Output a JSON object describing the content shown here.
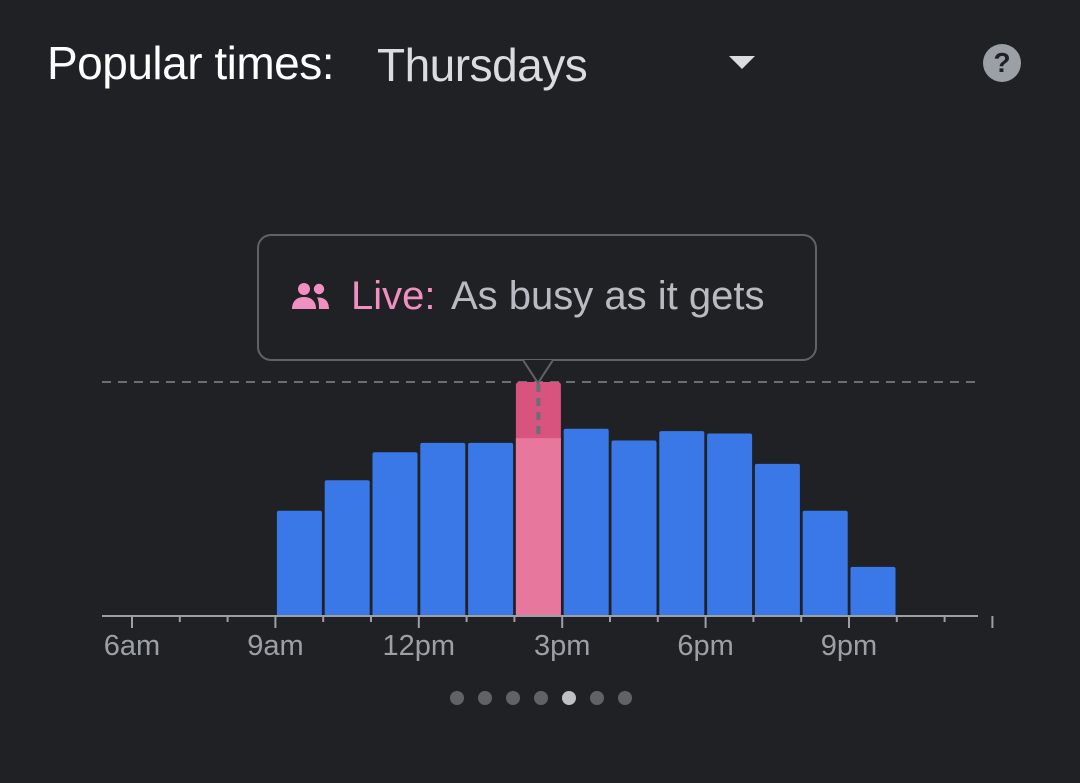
{
  "header": {
    "title": "Popular times:",
    "selected_day": "Thursdays",
    "help_icon": "help-circle-icon"
  },
  "live": {
    "icon": "people-icon",
    "label": "Live:",
    "status": "As busy as it gets"
  },
  "colors": {
    "bar": "#3b78e7",
    "live_bar": "#e8779e",
    "live_label": "#f08fc0",
    "axis": "#9aa0a6",
    "tick_label": "#9aa0a6"
  },
  "chart_data": {
    "type": "bar",
    "hours": [
      "6am",
      "7am",
      "8am",
      "9am",
      "10am",
      "11am",
      "12pm",
      "1pm",
      "2pm",
      "3pm",
      "4pm",
      "5pm",
      "6pm",
      "7pm",
      "8pm",
      "9pm",
      "10pm",
      "11pm"
    ],
    "tick_labels": [
      "6am",
      "9am",
      "12pm",
      "3pm",
      "6pm",
      "9pm"
    ],
    "tick_label_hours": [
      6,
      9,
      12,
      15,
      18,
      21
    ],
    "usual": [
      0,
      0,
      0,
      45,
      58,
      70,
      74,
      74,
      76,
      80,
      75,
      79,
      78,
      65,
      45,
      21,
      0,
      0
    ],
    "live_hour_index": 8,
    "live_value": 100,
    "ylim": [
      0,
      100
    ]
  },
  "pagination": {
    "count": 7,
    "active_index": 4
  }
}
